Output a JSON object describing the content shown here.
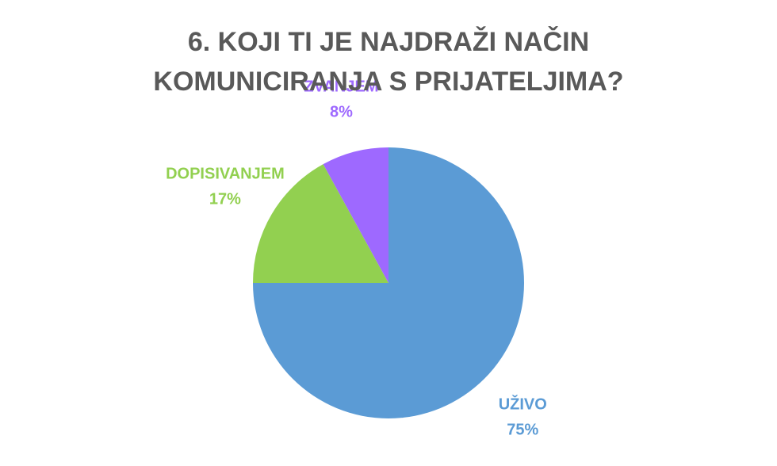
{
  "chart_data": {
    "type": "pie",
    "title": "6. KOJI TI JE NAJDRAŽI NAČIN KOMUNICIRANJA S PRIJATELJIMA?",
    "categories": [
      "UŽIVO",
      "DOPISIVANJEM",
      "ZVANJEM"
    ],
    "values": [
      75,
      17,
      8
    ],
    "value_labels": [
      "75%",
      "17%",
      "8%"
    ],
    "colors": [
      "#5b9bd5",
      "#92d050",
      "#9e69ff"
    ]
  }
}
